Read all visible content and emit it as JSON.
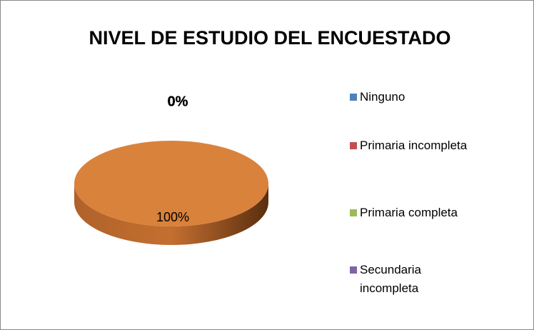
{
  "chart_data": {
    "type": "pie3d",
    "title": "NIVEL DE ESTUDIO DEL ENCUESTADO",
    "categories": [
      "Ninguno",
      "Primaria incompleta",
      "Primaria completa",
      "Secundaria incompleta",
      null
    ],
    "values": [
      0,
      0,
      0,
      0,
      100
    ],
    "value_labels": [
      "0%",
      "0%",
      "0%",
      "0%",
      "100%"
    ],
    "colors": [
      "#4f81bd",
      "#c0504d",
      "#9bbb59",
      "#8064a2",
      "#d9823c"
    ],
    "legend": "right"
  }
}
